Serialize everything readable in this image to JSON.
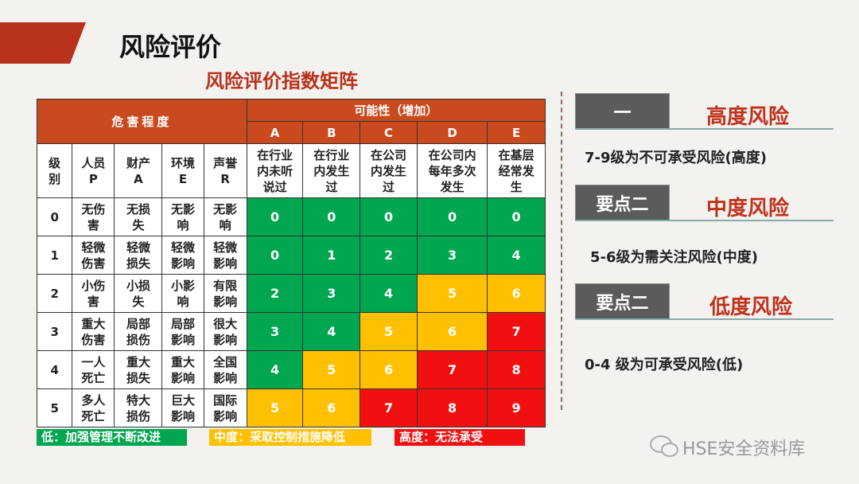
{
  "header": {
    "title": "风险评价",
    "subtitle": "风险评价指数矩阵"
  },
  "table": {
    "severity_header": "危害程度",
    "likelihood_header": "可能性（增加）",
    "likelihood_letters": [
      "A",
      "B",
      "C",
      "D",
      "E"
    ],
    "columns": [
      "级\n别",
      "人员\nP",
      "财产\nA",
      "环境\nE",
      "声誉\nR",
      "在行业\n内未听\n说过",
      "在行业\n内发生\n过",
      "在公司\n内发生\n过",
      "在公司内\n每年多次\n发生",
      "在基层\n经常发\n生"
    ],
    "rows": [
      {
        "level": "0",
        "people": "无伤\n害",
        "property": "无损\n失",
        "environment": "无影\n响",
        "reputation": "无影\n响",
        "risk": [
          "0",
          "0",
          "0",
          "0",
          "0"
        ],
        "colors": [
          "#00a650",
          "#00a650",
          "#00a650",
          "#00a650",
          "#00a650"
        ]
      },
      {
        "level": "1",
        "people": "轻微\n伤害",
        "property": "轻微\n损失",
        "environment": "轻微\n影响",
        "reputation": "轻微\n影响",
        "risk": [
          "0",
          "1",
          "2",
          "3",
          "4"
        ],
        "colors": [
          "#00a650",
          "#00a650",
          "#00a650",
          "#00a650",
          "#00a650"
        ]
      },
      {
        "level": "2",
        "people": "小伤\n害",
        "property": "小损\n失",
        "environment": "小影\n响",
        "reputation": "有限\n影响",
        "risk": [
          "2",
          "3",
          "4",
          "5",
          "6"
        ],
        "colors": [
          "#00a650",
          "#00a650",
          "#00a650",
          "#ffc000",
          "#ffc000"
        ]
      },
      {
        "level": "3",
        "people": "重大\n伤害",
        "property": "局部\n损伤",
        "environment": "局部\n影响",
        "reputation": "很大\n影响",
        "risk": [
          "3",
          "4",
          "5",
          "6",
          "7"
        ],
        "colors": [
          "#00a650",
          "#00a650",
          "#ffc000",
          "#ffc000",
          "#f01010"
        ]
      },
      {
        "level": "4",
        "people": "一人\n死亡",
        "property": "重大\n损失",
        "environment": "重大\n影响",
        "reputation": "全国\n影响",
        "risk": [
          "4",
          "5",
          "6",
          "7",
          "8"
        ],
        "colors": [
          "#00a650",
          "#ffc000",
          "#ffc000",
          "#f01010",
          "#f01010"
        ]
      },
      {
        "level": "5",
        "people": "多人\n死亡",
        "property": "特大\n损伤",
        "environment": "巨大\n影响",
        "reputation": "国际\n影响",
        "risk": [
          "5",
          "6",
          "7",
          "8",
          "9"
        ],
        "colors": [
          "#ffc000",
          "#ffc000",
          "#f01010",
          "#f01010",
          "#f01010"
        ]
      }
    ]
  },
  "legend": [
    {
      "text": "低：加强管理不断改进",
      "color": "#00a650"
    },
    {
      "text": "中度：采取控制措施降低",
      "color": "#ffc000"
    },
    {
      "text": "高度：无法承受",
      "color": "#f01010"
    }
  ],
  "panel": [
    {
      "badge": "一",
      "title": "高度风险",
      "desc": "7-9级为不可承受风险(高度)"
    },
    {
      "badge": "要点二",
      "title": "中度风险",
      "desc": "5-6级为需关注风险(中度)"
    },
    {
      "badge": "要点二",
      "title": "低度风险",
      "desc": "0-4 级为可承受风险(低)"
    }
  ],
  "watermark": "HSE安全资料库"
}
